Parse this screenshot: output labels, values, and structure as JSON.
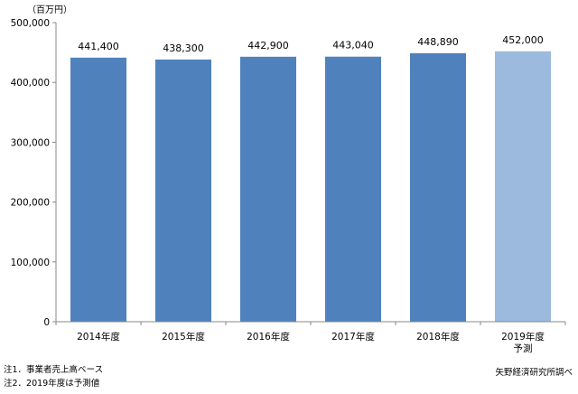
{
  "chart_data": {
    "type": "bar",
    "unit_label": "（百万円）",
    "categories": [
      "2014年度",
      "2015年度",
      "2016年度",
      "2017年度",
      "2018年度",
      "2019年度\n予測"
    ],
    "values": [
      441400,
      438300,
      442900,
      443040,
      448890,
      452000
    ],
    "value_labels": [
      "441,400",
      "438,300",
      "442,900",
      "443,040",
      "448,890",
      "452,000"
    ],
    "forecast_index": 5,
    "ylim": [
      0,
      500000
    ],
    "yticks": [
      0,
      100000,
      200000,
      300000,
      400000,
      500000
    ],
    "ytick_labels": [
      "0",
      "100,000",
      "200,000",
      "300,000",
      "400,000",
      "500,000"
    ],
    "grid": false,
    "colors": {
      "actual": "#4f81bd",
      "forecast": "#9bbadd"
    }
  },
  "notes": [
    "注1．事業者売上高ベース",
    "注2．2019年度は予測値"
  ],
  "source": "矢野経済研究所調べ"
}
